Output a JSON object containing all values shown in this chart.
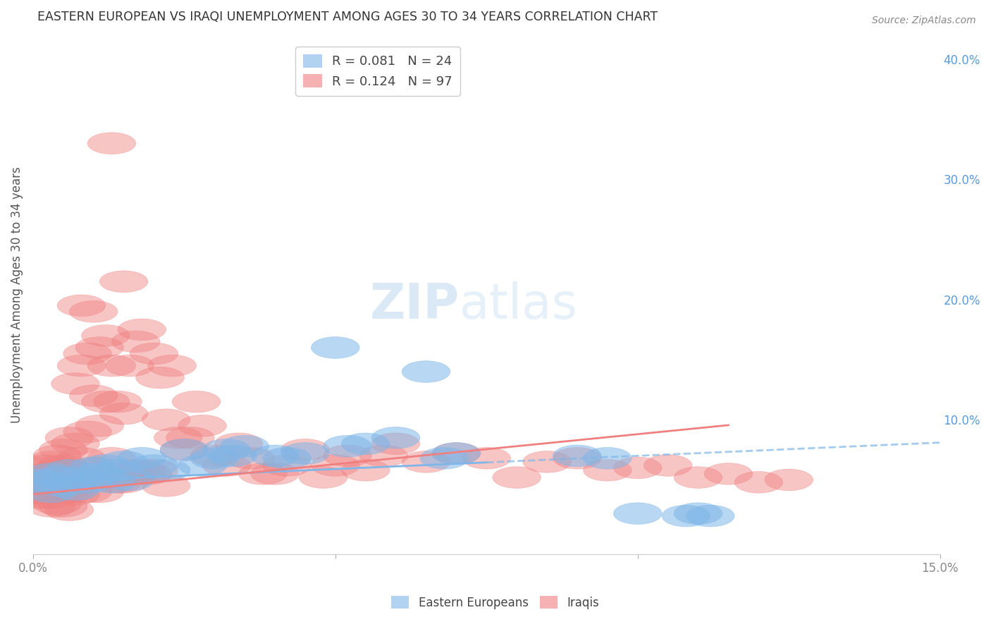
{
  "title": "EASTERN EUROPEAN VS IRAQI UNEMPLOYMENT AMONG AGES 30 TO 34 YEARS CORRELATION CHART",
  "source": "Source: ZipAtlas.com",
  "ylabel": "Unemployment Among Ages 30 to 34 years",
  "xlim": [
    0.0,
    0.15
  ],
  "ylim": [
    -0.012,
    0.42
  ],
  "right_yticks": [
    0.0,
    0.1,
    0.2,
    0.3,
    0.4
  ],
  "right_yticklabels": [
    "",
    "10.0%",
    "20.0%",
    "30.0%",
    "40.0%"
  ],
  "xticks": [
    0.0,
    0.05,
    0.1,
    0.15
  ],
  "xticklabels": [
    "0.0%",
    "",
    "",
    "15.0%"
  ],
  "watermark_zip": "ZIP",
  "watermark_atlas": "atlas",
  "background_color": "#ffffff",
  "grid_color": "#d0d0d0",
  "right_axis_color": "#5b9bd5",
  "blue_color": "#7eb6e8",
  "pink_color": "#f08080",
  "ee_x": [
    0.001,
    0.002,
    0.003,
    0.003,
    0.004,
    0.005,
    0.006,
    0.007,
    0.008,
    0.009,
    0.01,
    0.011,
    0.012,
    0.013,
    0.014,
    0.015,
    0.016,
    0.018,
    0.02,
    0.022,
    0.025,
    0.028,
    0.03,
    0.032,
    0.033,
    0.035,
    0.04,
    0.042,
    0.045,
    0.05,
    0.052,
    0.055,
    0.06,
    0.065,
    0.068,
    0.07,
    0.09,
    0.095,
    0.1,
    0.108,
    0.11,
    0.112
  ],
  "ee_y": [
    0.05,
    0.048,
    0.055,
    0.04,
    0.052,
    0.045,
    0.058,
    0.042,
    0.052,
    0.048,
    0.06,
    0.055,
    0.062,
    0.048,
    0.058,
    0.065,
    0.05,
    0.068,
    0.062,
    0.058,
    0.075,
    0.062,
    0.068,
    0.075,
    0.07,
    0.078,
    0.07,
    0.068,
    0.072,
    0.16,
    0.078,
    0.08,
    0.085,
    0.14,
    0.068,
    0.072,
    0.07,
    0.068,
    0.022,
    0.02,
    0.022,
    0.02
  ],
  "iq_x": [
    0.0,
    0.001,
    0.001,
    0.001,
    0.002,
    0.002,
    0.002,
    0.002,
    0.003,
    0.003,
    0.003,
    0.003,
    0.003,
    0.004,
    0.004,
    0.004,
    0.004,
    0.005,
    0.005,
    0.005,
    0.005,
    0.006,
    0.006,
    0.006,
    0.006,
    0.007,
    0.007,
    0.007,
    0.007,
    0.008,
    0.008,
    0.008,
    0.009,
    0.009,
    0.009,
    0.01,
    0.01,
    0.01,
    0.011,
    0.011,
    0.011,
    0.012,
    0.012,
    0.012,
    0.013,
    0.013,
    0.013,
    0.014,
    0.014,
    0.015,
    0.015,
    0.015,
    0.016,
    0.016,
    0.017,
    0.017,
    0.018,
    0.018,
    0.019,
    0.02,
    0.02,
    0.021,
    0.022,
    0.022,
    0.023,
    0.024,
    0.025,
    0.026,
    0.027,
    0.028,
    0.03,
    0.032,
    0.034,
    0.036,
    0.038,
    0.04,
    0.042,
    0.045,
    0.048,
    0.05,
    0.052,
    0.055,
    0.058,
    0.06,
    0.065,
    0.07,
    0.075,
    0.08,
    0.085,
    0.09,
    0.095,
    0.1,
    0.105,
    0.11,
    0.115,
    0.12,
    0.125
  ],
  "iq_y": [
    0.05,
    0.048,
    0.06,
    0.035,
    0.045,
    0.062,
    0.038,
    0.055,
    0.04,
    0.065,
    0.052,
    0.035,
    0.028,
    0.058,
    0.07,
    0.045,
    0.03,
    0.075,
    0.062,
    0.042,
    0.028,
    0.085,
    0.058,
    0.04,
    0.025,
    0.13,
    0.08,
    0.055,
    0.038,
    0.195,
    0.145,
    0.068,
    0.155,
    0.09,
    0.04,
    0.19,
    0.12,
    0.06,
    0.16,
    0.095,
    0.04,
    0.17,
    0.115,
    0.052,
    0.33,
    0.145,
    0.068,
    0.115,
    0.048,
    0.215,
    0.105,
    0.048,
    0.145,
    0.055,
    0.165,
    0.058,
    0.175,
    0.058,
    0.055,
    0.155,
    0.058,
    0.135,
    0.1,
    0.045,
    0.145,
    0.085,
    0.075,
    0.085,
    0.115,
    0.095,
    0.07,
    0.062,
    0.08,
    0.068,
    0.055,
    0.055,
    0.062,
    0.075,
    0.052,
    0.062,
    0.07,
    0.058,
    0.07,
    0.08,
    0.065,
    0.072,
    0.068,
    0.052,
    0.065,
    0.068,
    0.058,
    0.06,
    0.062,
    0.052,
    0.055,
    0.048,
    0.05
  ]
}
